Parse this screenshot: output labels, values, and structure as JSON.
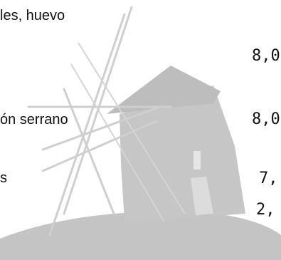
{
  "menu": {
    "items": [
      {
        "name": "les, huevo",
        "price": "8,0"
      },
      {
        "name": "ón serrano",
        "price": "8,0"
      },
      {
        "name": "s",
        "price": "7,"
      },
      {
        "name": "",
        "price": "2,"
      }
    ]
  },
  "watermark": {
    "icon": "windmill-icon",
    "color": "#c8c8c8"
  }
}
